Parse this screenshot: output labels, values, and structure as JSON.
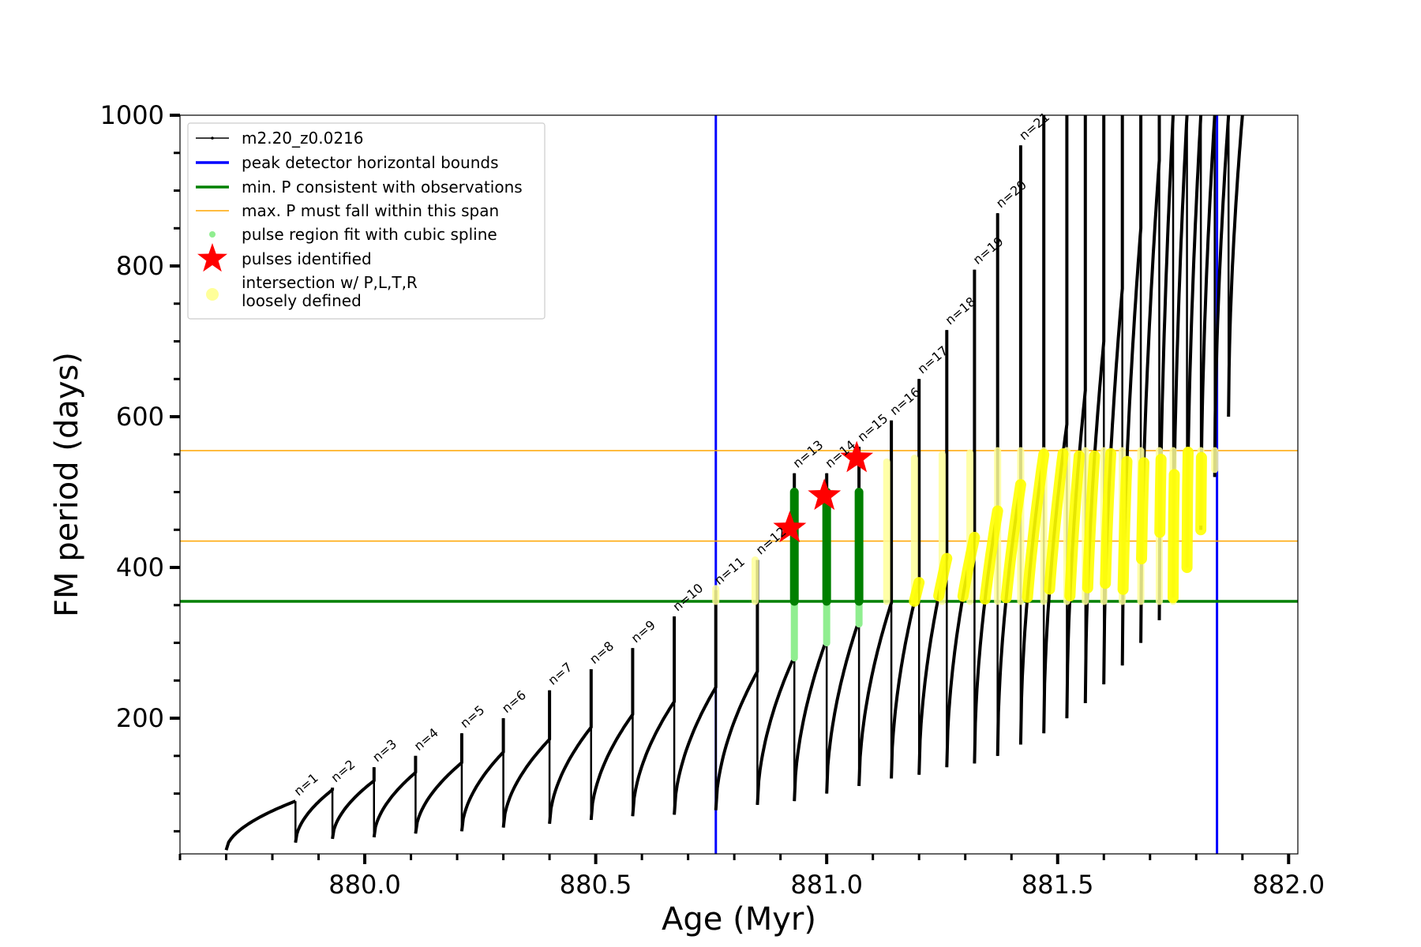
{
  "chart_data": {
    "type": "scatter",
    "xlabel": "Age (Myr)",
    "ylabel": "FM period (days)",
    "xlim": [
      879.6,
      882.02
    ],
    "ylim": [
      20,
      1000
    ],
    "x_ticks": [
      "880.0",
      "880.5",
      "881.0",
      "881.5",
      "882.0"
    ],
    "y_ticks": [
      "200",
      "400",
      "600",
      "800",
      "1000"
    ],
    "grid": false,
    "legend_position": "upper-left",
    "legend": [
      {
        "label": "m2.20_z0.0216",
        "kind": "line-marker",
        "color": "#000000"
      },
      {
        "label": "peak detector horizontal bounds",
        "kind": "line",
        "color": "#0000ff"
      },
      {
        "label": "min. P consistent with observations",
        "kind": "line",
        "color": "#008000"
      },
      {
        "label": "max. P must fall within this span",
        "kind": "line",
        "color": "#ffa500"
      },
      {
        "label": "pulse region fit with cubic spline",
        "kind": "dot",
        "color": "#90ee90"
      },
      {
        "label": "pulses identified",
        "kind": "star",
        "color": "#ff0000"
      },
      {
        "label": "intersection w/ P,L,T,R",
        "label2": "loosely defined",
        "kind": "dot",
        "color": "#ffff99"
      }
    ],
    "vlines": [
      880.76,
      881.845
    ],
    "hline_min": 355,
    "hlines_max": [
      435,
      555
    ],
    "pulses": [
      {
        "n": "n=1",
        "start": 879.7,
        "t": 879.85,
        "base": 25,
        "peak": 90,
        "top": 90
      },
      {
        "n": "n=2",
        "start": 879.85,
        "t": 879.93,
        "base": 35,
        "peak": 105,
        "top": 108
      },
      {
        "n": "n=3",
        "start": 879.93,
        "t": 880.02,
        "base": 40,
        "peak": 117,
        "top": 135
      },
      {
        "n": "n=4",
        "start": 880.02,
        "t": 880.11,
        "base": 42,
        "peak": 128,
        "top": 150
      },
      {
        "n": "n=5",
        "start": 880.11,
        "t": 880.21,
        "base": 47,
        "peak": 141,
        "top": 180
      },
      {
        "n": "n=6",
        "start": 880.21,
        "t": 880.3,
        "base": 50,
        "peak": 155,
        "top": 200
      },
      {
        "n": "n=7",
        "start": 880.3,
        "t": 880.4,
        "base": 55,
        "peak": 172,
        "top": 237
      },
      {
        "n": "n=8",
        "start": 880.4,
        "t": 880.49,
        "base": 60,
        "peak": 188,
        "top": 265
      },
      {
        "n": "n=9",
        "start": 880.49,
        "t": 880.58,
        "base": 65,
        "peak": 205,
        "top": 293
      },
      {
        "n": "n=10",
        "start": 880.58,
        "t": 880.67,
        "base": 70,
        "peak": 222,
        "top": 335
      },
      {
        "n": "n=11",
        "start": 880.67,
        "t": 880.76,
        "base": 72,
        "peak": 241,
        "top": 370
      },
      {
        "n": "n=12",
        "start": 880.76,
        "t": 880.85,
        "base": 78,
        "peak": 262,
        "top": 410
      },
      {
        "n": "n=13",
        "start": 880.85,
        "t": 880.93,
        "base": 85,
        "peak": 282,
        "top": 525
      },
      {
        "n": "n=14",
        "start": 880.93,
        "t": 881.0,
        "base": 90,
        "peak": 305,
        "top": 525
      },
      {
        "n": "n=15",
        "start": 881.0,
        "t": 881.07,
        "base": 100,
        "peak": 330,
        "top": 560
      },
      {
        "n": "n=16",
        "start": 881.07,
        "t": 881.14,
        "base": 110,
        "peak": 353,
        "top": 595
      },
      {
        "n": "n=17",
        "start": 881.14,
        "t": 881.2,
        "base": 120,
        "peak": 380,
        "top": 650
      },
      {
        "n": "n=18",
        "start": 881.2,
        "t": 881.26,
        "base": 125,
        "peak": 412,
        "top": 715
      },
      {
        "n": "n=19",
        "start": 881.26,
        "t": 881.32,
        "base": 135,
        "peak": 440,
        "top": 795
      },
      {
        "n": "n=20",
        "start": 881.32,
        "t": 881.37,
        "base": 140,
        "peak": 475,
        "top": 870
      },
      {
        "n": "n=21",
        "start": 881.37,
        "t": 881.42,
        "base": 150,
        "peak": 510,
        "top": 960
      },
      {
        "n": "",
        "start": 881.42,
        "t": 881.47,
        "base": 165,
        "peak": 550,
        "top": 1000
      },
      {
        "n": "",
        "start": 881.47,
        "t": 881.52,
        "base": 180,
        "peak": 590,
        "top": 1000
      },
      {
        "n": "",
        "start": 881.52,
        "t": 881.56,
        "base": 200,
        "peak": 635,
        "top": 1000
      },
      {
        "n": "",
        "start": 881.56,
        "t": 881.6,
        "base": 220,
        "peak": 700,
        "top": 1000
      },
      {
        "n": "",
        "start": 881.6,
        "t": 881.64,
        "base": 245,
        "peak": 770,
        "top": 1000
      },
      {
        "n": "",
        "start": 881.64,
        "t": 881.68,
        "base": 270,
        "peak": 850,
        "top": 1000
      },
      {
        "n": "",
        "start": 881.68,
        "t": 881.72,
        "base": 300,
        "peak": 940,
        "top": 1000
      },
      {
        "n": "",
        "start": 881.72,
        "t": 881.75,
        "base": 330,
        "peak": 1000,
        "top": 1000
      },
      {
        "n": "",
        "start": 881.75,
        "t": 881.78,
        "base": 360,
        "peak": 1000,
        "top": 1000
      },
      {
        "n": "",
        "start": 881.78,
        "t": 881.81,
        "base": 400,
        "peak": 1000,
        "top": 1000
      },
      {
        "n": "",
        "start": 881.81,
        "t": 881.84,
        "base": 450,
        "peak": 1000,
        "top": 1000
      },
      {
        "n": "",
        "start": 881.84,
        "t": 881.87,
        "base": 520,
        "peak": 1000,
        "top": 1000
      },
      {
        "n": "",
        "start": 881.87,
        "t": 881.9,
        "base": 600,
        "peak": 1000,
        "top": 1000
      }
    ],
    "spline_regions": [
      {
        "x": 880.93,
        "min": 280,
        "max": 500
      },
      {
        "x": 881.0,
        "min": 300,
        "max": 500
      },
      {
        "x": 881.07,
        "min": 325,
        "max": 500
      }
    ],
    "pulses_identified": [
      {
        "x": 880.92,
        "y": 452
      },
      {
        "x": 880.995,
        "y": 495
      },
      {
        "x": 881.065,
        "y": 545
      }
    ],
    "loose_intersections": [
      {
        "x": 880.76,
        "min": 355,
        "max": 372
      },
      {
        "x": 880.845,
        "min": 355,
        "max": 410
      },
      {
        "x": 881.13,
        "min": 355,
        "max": 540
      },
      {
        "x": 881.19,
        "min": 355,
        "max": 545
      },
      {
        "x": 881.25,
        "min": 355,
        "max": 550
      },
      {
        "x": 881.31,
        "min": 355,
        "max": 552
      },
      {
        "x": 881.37,
        "min": 355,
        "max": 555
      },
      {
        "x": 881.42,
        "min": 355,
        "max": 555
      },
      {
        "x": 881.47,
        "min": 355,
        "max": 555
      },
      {
        "x": 881.52,
        "min": 355,
        "max": 555
      },
      {
        "x": 881.56,
        "min": 355,
        "max": 555
      },
      {
        "x": 881.6,
        "min": 355,
        "max": 555
      },
      {
        "x": 881.64,
        "min": 355,
        "max": 555
      },
      {
        "x": 881.68,
        "min": 355,
        "max": 555
      },
      {
        "x": 881.72,
        "min": 355,
        "max": 555
      },
      {
        "x": 881.75,
        "min": 355,
        "max": 555
      },
      {
        "x": 881.78,
        "min": 400,
        "max": 555
      },
      {
        "x": 881.81,
        "min": 460,
        "max": 555
      },
      {
        "x": 881.84,
        "min": 530,
        "max": 555
      }
    ],
    "loose_arcs_range": [
      881.1,
      881.84
    ]
  }
}
